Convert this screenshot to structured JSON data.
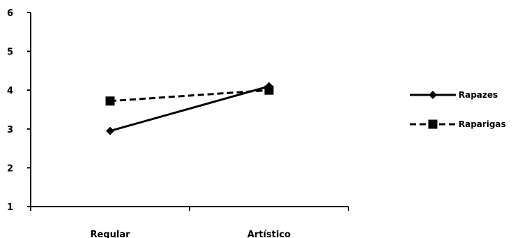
{
  "chart_data": {
    "type": "line",
    "categories": [
      "Regular",
      "Artístico"
    ],
    "series": [
      {
        "name": "Rapazes",
        "values": [
          2.95,
          4.1
        ],
        "marker": "diamond",
        "line_style": "solid",
        "color": "#000000"
      },
      {
        "name": "Raparigas",
        "values": [
          3.72,
          4.0
        ],
        "marker": "square",
        "line_style": "dashed",
        "color": "#000000"
      }
    ],
    "y_ticks": [
      "1",
      "2",
      "3",
      "4",
      "5",
      "6"
    ],
    "ylim": [
      1,
      6
    ],
    "title": "",
    "xlabel": "",
    "ylabel": "",
    "grid": false,
    "legend_position": "right"
  }
}
